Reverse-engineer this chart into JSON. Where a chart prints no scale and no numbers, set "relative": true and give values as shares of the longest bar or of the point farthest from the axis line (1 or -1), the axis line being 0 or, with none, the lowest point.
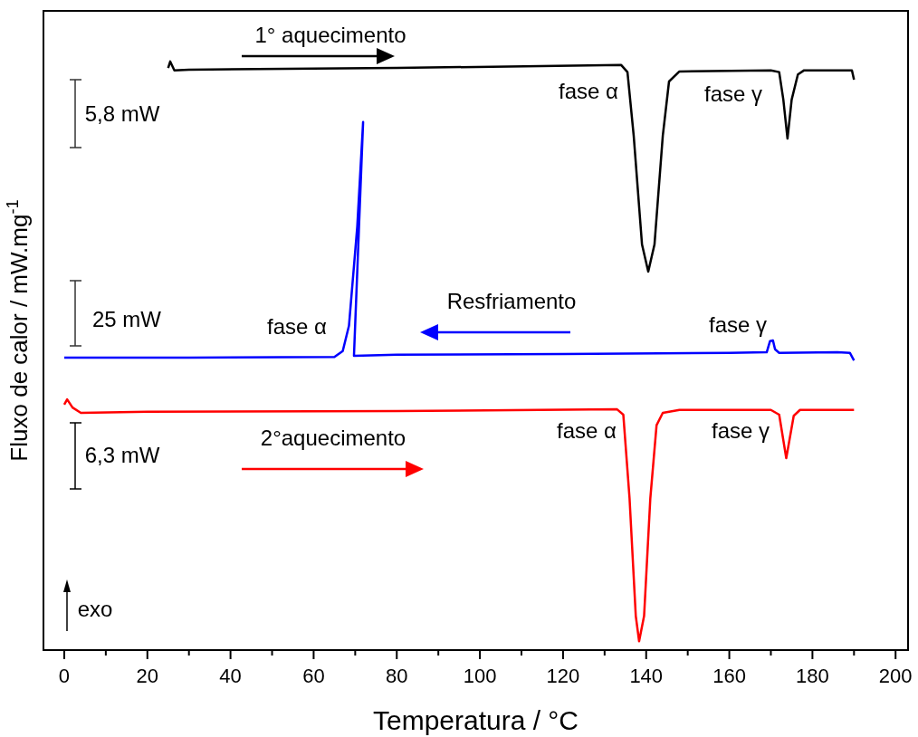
{
  "chart_data": {
    "type": "line",
    "relative": true,
    "xlabel": "Temperatura / °C",
    "ylabel": "Fluxo de calor / mW.mg$^{-1}$",
    "xlim": [
      -5,
      203
    ],
    "xticks": [
      0,
      {
        "value": 10,
        "label": null
      },
      20,
      {
        "value": 30,
        "label": null
      },
      40,
      {
        "value": 50,
        "label": null
      },
      60,
      {
        "value": 70,
        "label": null
      },
      80,
      {
        "value": 90,
        "label": null
      },
      100,
      {
        "value": 110,
        "label": null
      },
      120,
      {
        "value": 130,
        "label": null
      },
      140,
      {
        "value": 150,
        "label": null
      },
      160,
      {
        "value": 170,
        "label": null
      },
      180,
      {
        "value": 190,
        "label": null
      },
      200
    ],
    "tick_labels": "x",
    "marker": "none",
    "line_style": "solid",
    "series": [
      {
        "color": "#000000",
        "x": [
          25,
          25.5,
          26.5,
          30,
          80,
          134,
          135.5,
          137,
          139,
          140.5,
          142,
          144,
          145.5,
          148,
          170,
          172,
          173,
          174,
          175,
          176.5,
          178,
          189.5,
          190
        ],
        "values": [
          0.989,
          1.0,
          0.985,
          0.986,
          0.989,
          0.994,
          0.982,
          0.874,
          0.689,
          0.643,
          0.689,
          0.874,
          0.966,
          0.983,
          0.985,
          0.982,
          0.935,
          0.869,
          0.935,
          0.978,
          0.985,
          0.985,
          0.969
        ]
      },
      {
        "color": "#0000ff",
        "x": [
          190,
          189,
          186,
          172,
          171,
          170.5,
          169.8,
          169,
          160,
          120,
          80,
          69.7,
          71.9,
          70.5,
          68.5,
          67,
          65,
          30,
          0
        ],
        "values": [
          0.492,
          0.505,
          0.506,
          0.505,
          0.511,
          0.526,
          0.525,
          0.506,
          0.505,
          0.503,
          0.502,
          0.5,
          0.897,
          0.72,
          0.551,
          0.508,
          0.498,
          0.497,
          0.497
        ]
      },
      {
        "color": "#ff0000",
        "x": [
          0,
          0.7,
          2,
          4,
          20,
          80,
          133,
          134.5,
          136,
          137.5,
          138.3,
          139.5,
          141,
          142.5,
          144,
          148,
          170,
          172,
          173.7,
          175.5,
          177,
          190
        ],
        "values": [
          0.417,
          0.426,
          0.412,
          0.403,
          0.405,
          0.406,
          0.409,
          0.4,
          0.258,
          0.058,
          0.015,
          0.058,
          0.258,
          0.382,
          0.403,
          0.408,
          0.408,
          0.4,
          0.326,
          0.398,
          0.408,
          0.408
        ]
      }
    ],
    "annotations": [
      "1° aquecimento",
      "fase α",
      "fase γ",
      "5,8 mW",
      "Resfriamento",
      "fase α",
      "fase γ",
      "25 mW",
      "2°aquecimento",
      "6,3 mW",
      "fase α",
      "fase γ",
      "exo"
    ]
  }
}
